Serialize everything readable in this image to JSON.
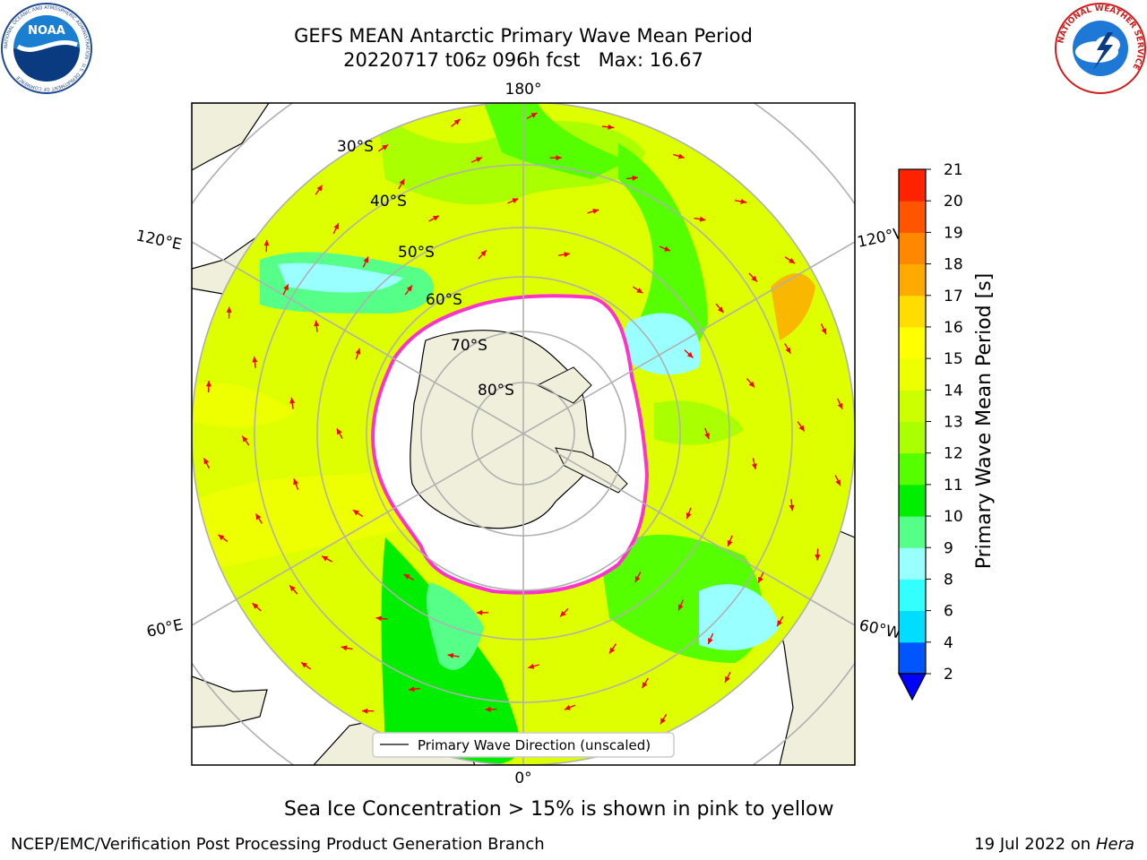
{
  "header": {
    "title_line1": "GEFS MEAN Antarctic Primary Wave Mean Period",
    "title_line2": "20220717 t06z 096h fcst   Max: 16.67"
  },
  "logos": {
    "noaa_text": "NOAA",
    "noaa_ring_text": "NATIONAL OCEANIC AND ATMOSPHERIC ADMINISTRATION · U.S. DEPARTMENT OF COMMERCE",
    "nws_ring_text": "NATIONAL WEATHER SERVICE"
  },
  "map": {
    "projection": "south-polar-stereographic",
    "longitude_labels": {
      "top": "180°",
      "bottom": "0°",
      "upper_left": "120°E",
      "upper_right": "120°W",
      "lower_left": "60°E",
      "lower_right": "60°W"
    },
    "latitude_labels": [
      "30°S",
      "40°S",
      "50°S",
      "60°S",
      "70°S",
      "80°S"
    ],
    "legend_label": "Primary Wave Direction (unscaled)",
    "colors": {
      "land": "#efefdb",
      "ice": "#ffffff",
      "ice_edge": "#ff33cc",
      "arrow": "#ff0000",
      "grid": "#b0b0b0"
    }
  },
  "colorbar": {
    "label": "Primary Wave Mean Period [s]",
    "ticks": [
      "2",
      "4",
      "6",
      "8",
      "9",
      "10",
      "11",
      "12",
      "13",
      "14",
      "15",
      "16",
      "17",
      "18",
      "19",
      "20",
      "21"
    ],
    "colors": [
      "#0055ff",
      "#00ddff",
      "#33ffff",
      "#99ffff",
      "#55ff88",
      "#00ee00",
      "#55ff00",
      "#aaff00",
      "#ccff00",
      "#eeff00",
      "#ffff00",
      "#ffdd00",
      "#ffaa00",
      "#ff8800",
      "#ff5500",
      "#ff2200",
      "#ff0000"
    ],
    "extend_color": "#0000ff"
  },
  "footer": {
    "note": "Sea Ice Concentration > 15% is shown in pink to yellow",
    "credit": "NCEP/EMC/Verification Post Processing Product Generation Branch",
    "date": "19 Jul 2022 on ",
    "host": "Hera"
  }
}
